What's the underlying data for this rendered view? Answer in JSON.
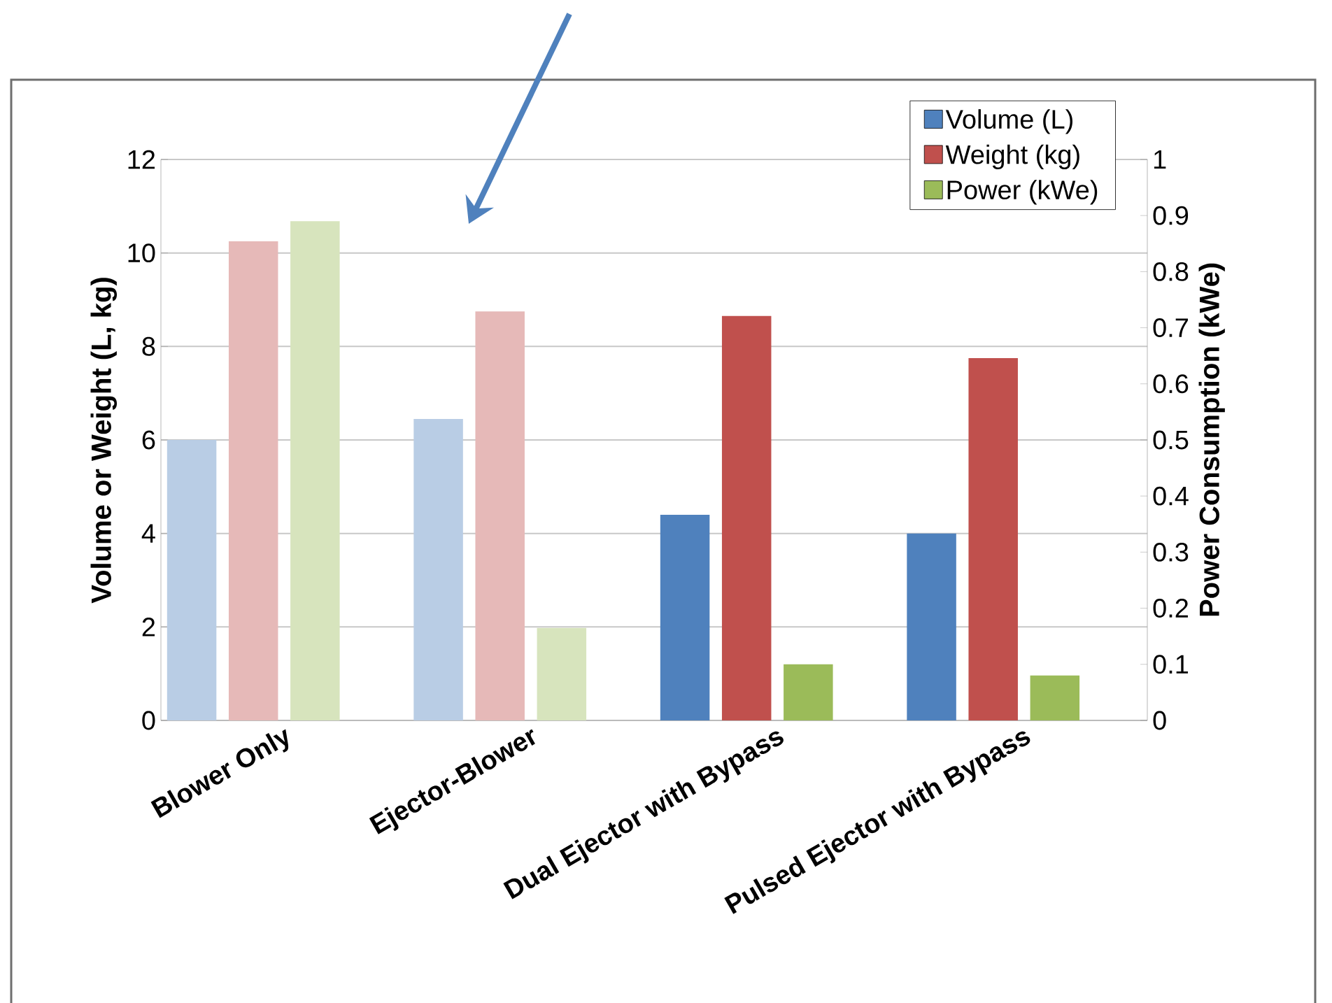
{
  "chart_data": {
    "type": "bar",
    "categories": [
      "Blower Only",
      "Ejector-Blower",
      "Dual Ejector with Bypass",
      "Pulsed Ejector with Bypass"
    ],
    "series": [
      {
        "name": "Volume (L)",
        "color": "#4f81bd",
        "colors": [
          "#b9cde5",
          "#b9cde5",
          "#4f81bd",
          "#4f81bd"
        ],
        "values": [
          6.0,
          6.45,
          4.4,
          4.0
        ]
      },
      {
        "name": "Weight (kg)",
        "color": "#c0504d",
        "colors": [
          "#e6b9b8",
          "#e6b9b8",
          "#c0504d",
          "#c0504d"
        ],
        "values": [
          10.25,
          8.75,
          8.65,
          7.75
        ]
      },
      {
        "name": "Power (kWe)",
        "color": "#9bbb59",
        "colors": [
          "#d7e4bd",
          "#d7e4bd",
          "#9bbb59",
          "#9bbb59"
        ],
        "values": [
          0.89,
          0.165,
          0.1,
          0.08
        ],
        "axis": "y2"
      }
    ],
    "ylabel": "Volume or Weight (L, kg)",
    "y2label": "Power Consumption (kWe)",
    "ylim": [
      0,
      12
    ],
    "yticks": [
      0,
      2,
      4,
      6,
      8,
      10,
      12
    ],
    "y2lim": [
      0,
      1
    ],
    "y2ticks": [
      0,
      {
        "value": 0.1,
        "label": "0.1"
      },
      {
        "value": 0.2,
        "label": "0.2"
      },
      {
        "value": 0.3,
        "label": "0.3"
      },
      {
        "value": 0.4,
        "label": "0.4"
      },
      {
        "value": 0.5,
        "label": "0.5"
      },
      {
        "value": 0.6,
        "label": "0.6"
      },
      {
        "value": 0.7,
        "label": "0.7"
      },
      {
        "value": 0.8,
        "label": "0.8"
      },
      {
        "value": 0.9,
        "label": "0.9"
      },
      1
    ],
    "grid": "y",
    "legend": "top right"
  }
}
